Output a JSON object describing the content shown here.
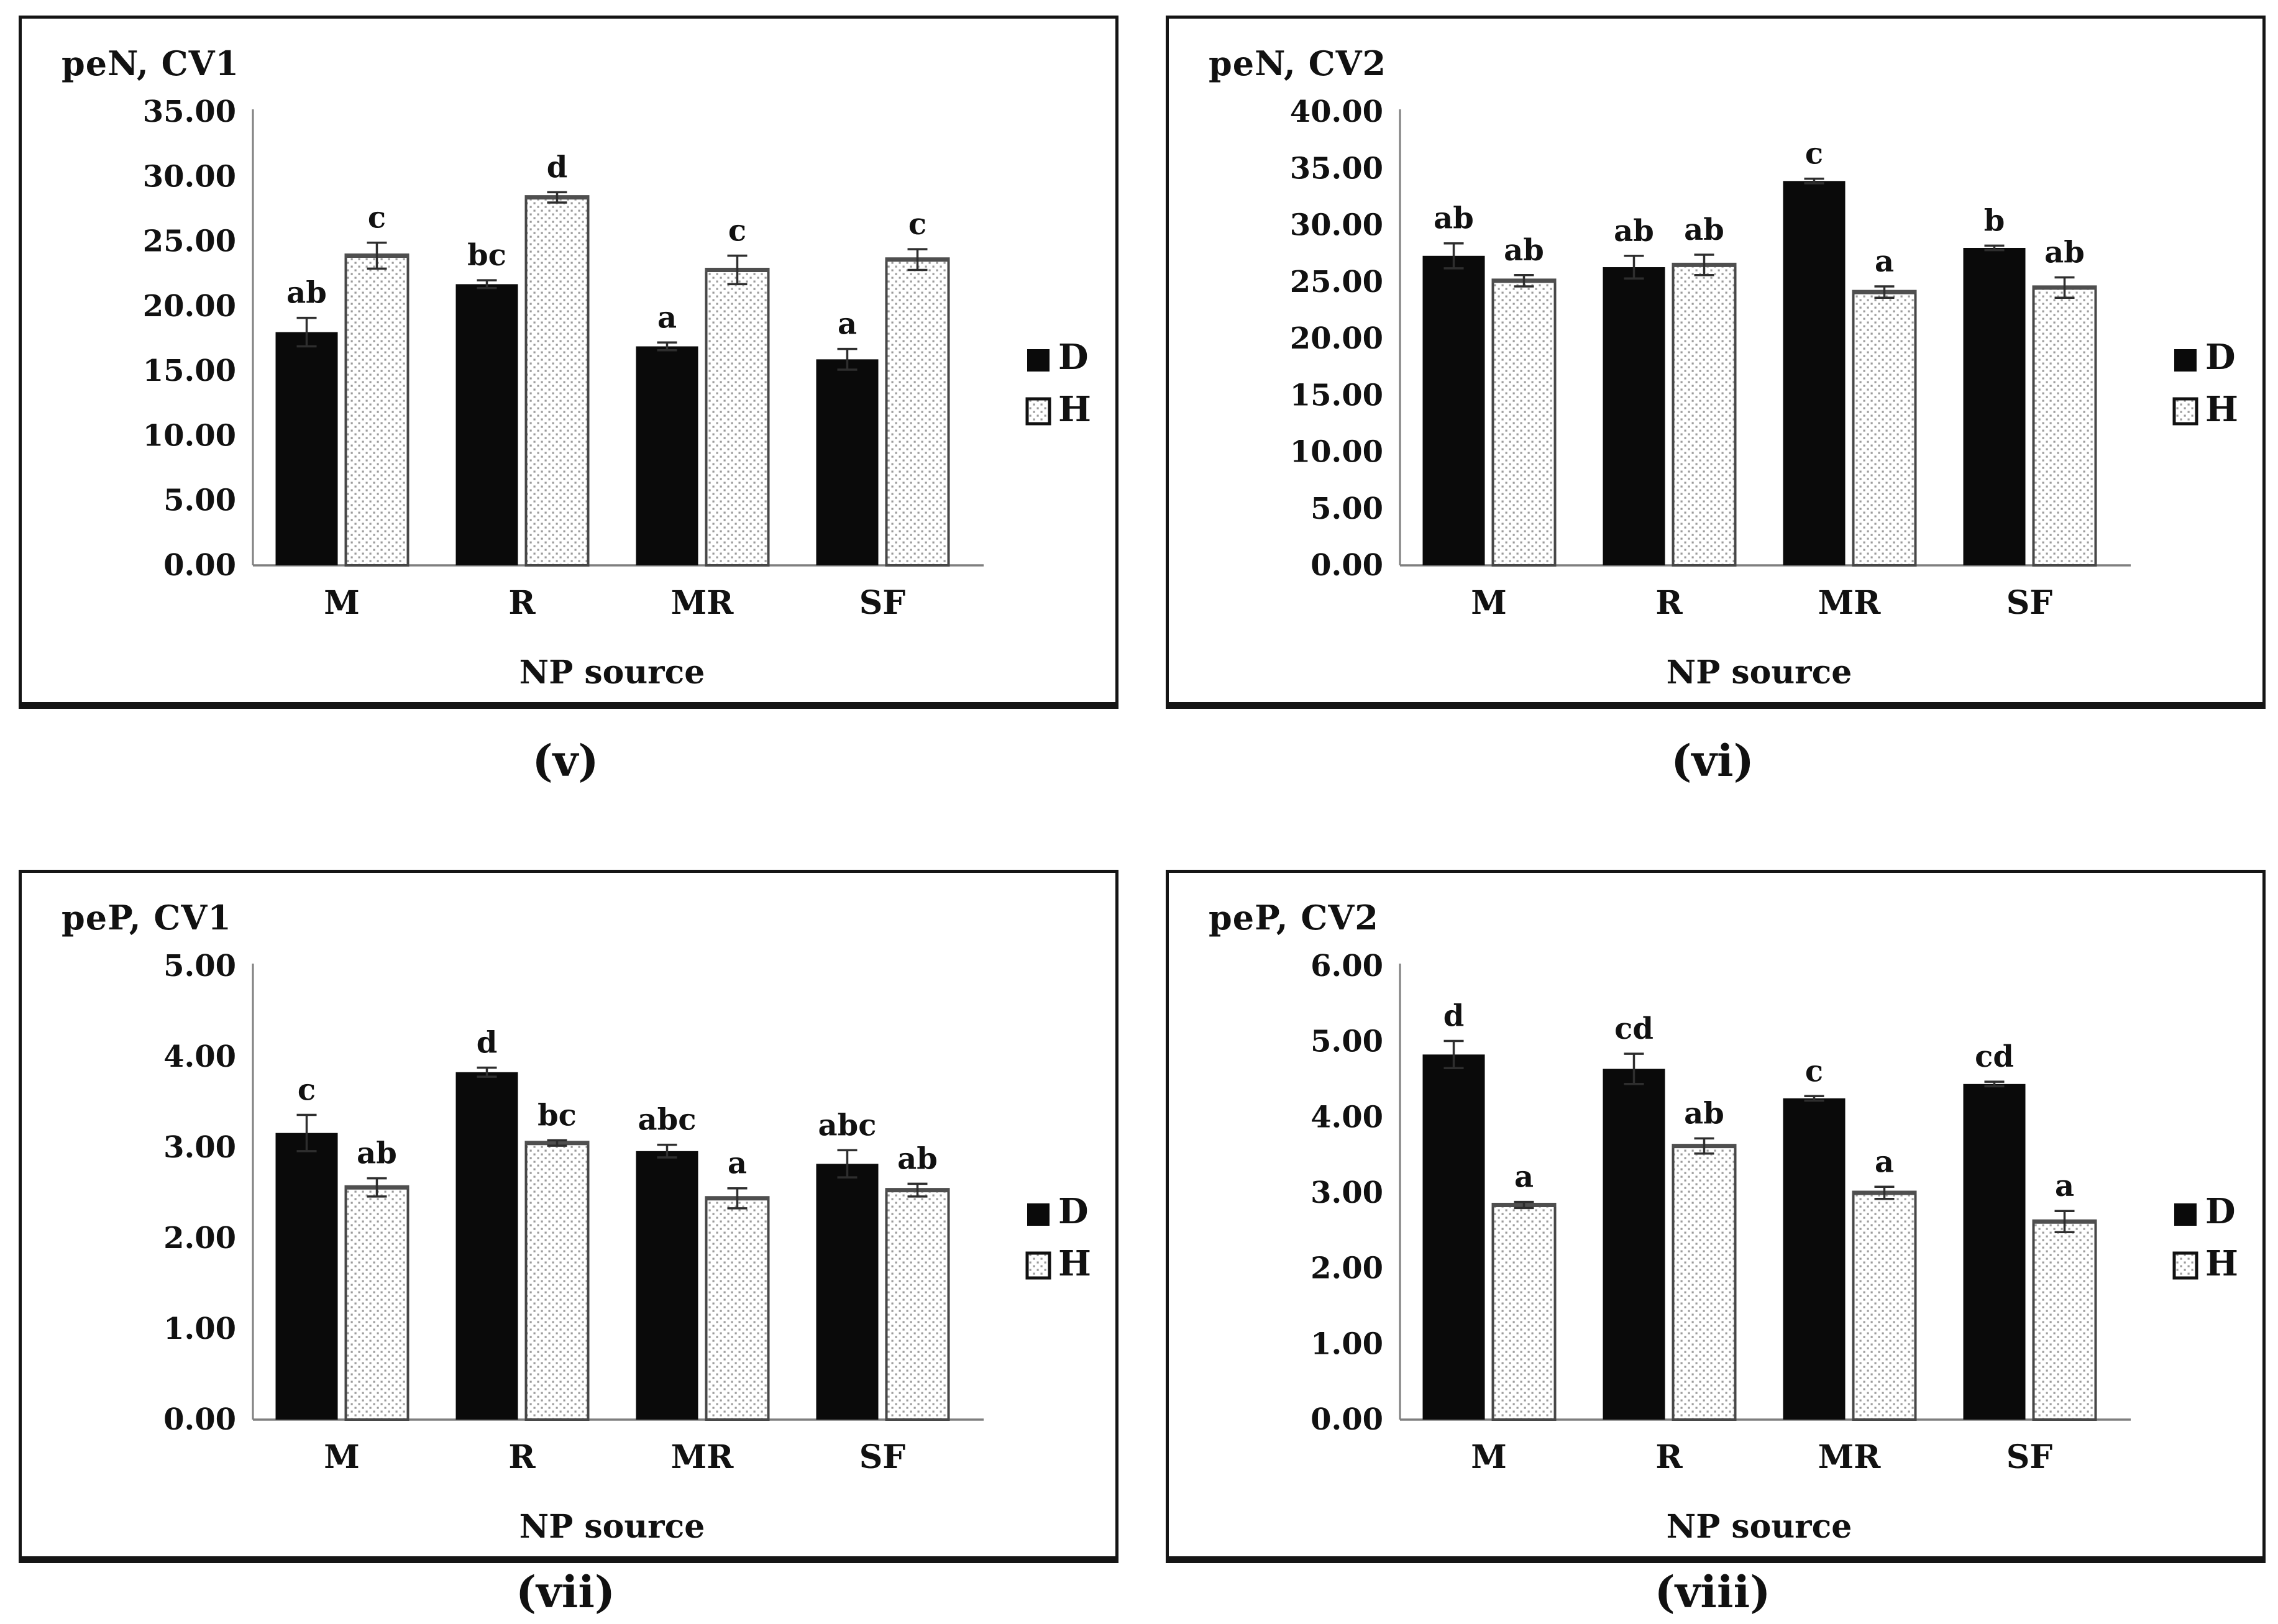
{
  "figure": {
    "background": "#ffffff",
    "panel_border_color": "#151515",
    "text_color": "#111111",
    "axis_color": "#7f7f7f",
    "error_bar_color": "#2e2e2e",
    "bar_d_fill": "#0a0a0a",
    "bar_h_dot_color": "#9b9b9b",
    "bar_h_stroke": "#474747"
  },
  "chart_data": [
    {
      "id": "v",
      "type": "bar",
      "title": "peN, CV1",
      "caption": "(v)",
      "xlabel": "NP source",
      "categories": [
        "M",
        "R",
        "MR",
        "SF"
      ],
      "ylim": [
        0,
        35
      ],
      "ytick_step": 5,
      "grid": false,
      "legend_position": "right",
      "series": [
        {
          "name": "D",
          "style": "solid-black",
          "values": [
            18.0,
            21.7,
            16.9,
            15.9
          ],
          "errors": [
            1.1,
            0.3,
            0.3,
            0.8
          ],
          "letters": [
            "ab",
            "bc",
            "a",
            "a"
          ]
        },
        {
          "name": "H",
          "style": "dotted-white",
          "values": [
            23.9,
            28.4,
            22.8,
            23.6
          ],
          "errors": [
            1.0,
            0.4,
            1.1,
            0.8
          ],
          "letters": [
            "c",
            "d",
            "c",
            "c"
          ]
        }
      ]
    },
    {
      "id": "vi",
      "type": "bar",
      "title": "peN, CV2",
      "caption": "(vi)",
      "xlabel": "NP source",
      "categories": [
        "M",
        "R",
        "MR",
        "SF"
      ],
      "ylim": [
        0,
        40
      ],
      "ytick_step": 5,
      "grid": false,
      "legend_position": "right",
      "series": [
        {
          "name": "D",
          "style": "solid-black",
          "values": [
            27.3,
            26.3,
            33.9,
            28.0
          ],
          "errors": [
            1.1,
            1.0,
            0.2,
            0.2
          ],
          "letters": [
            "ab",
            "ab",
            "c",
            "b"
          ]
        },
        {
          "name": "H",
          "style": "dotted-white",
          "values": [
            25.1,
            26.5,
            24.1,
            24.5
          ],
          "errors": [
            0.5,
            0.9,
            0.5,
            0.9
          ],
          "letters": [
            "ab",
            "ab",
            "a",
            "ab"
          ]
        }
      ]
    },
    {
      "id": "vii",
      "type": "bar",
      "title": "peP, CV1",
      "caption": "(vii)",
      "xlabel": "NP source",
      "categories": [
        "M",
        "R",
        "MR",
        "SF"
      ],
      "ylim": [
        0,
        5
      ],
      "ytick_step": 1,
      "grid": false,
      "legend_position": "right",
      "series": [
        {
          "name": "D",
          "style": "solid-black",
          "values": [
            3.16,
            3.83,
            2.96,
            2.82
          ],
          "errors": [
            0.2,
            0.05,
            0.07,
            0.15
          ],
          "letters": [
            "c",
            "d",
            "abc",
            "abc"
          ]
        },
        {
          "name": "H",
          "style": "dotted-white",
          "values": [
            2.56,
            3.05,
            2.44,
            2.53
          ],
          "errors": [
            0.1,
            0.03,
            0.11,
            0.07
          ],
          "letters": [
            "ab",
            "bc",
            "a",
            "ab"
          ]
        }
      ]
    },
    {
      "id": "viii",
      "type": "bar",
      "title": "peP, CV2",
      "caption": "(viii)",
      "xlabel": "NP source",
      "categories": [
        "M",
        "R",
        "MR",
        "SF"
      ],
      "ylim": [
        0,
        6
      ],
      "ytick_step": 1,
      "grid": false,
      "legend_position": "right",
      "series": [
        {
          "name": "D",
          "style": "solid-black",
          "values": [
            4.83,
            4.64,
            4.25,
            4.44
          ],
          "errors": [
            0.18,
            0.2,
            0.03,
            0.03
          ],
          "letters": [
            "d",
            "cd",
            "c",
            "cd"
          ]
        },
        {
          "name": "H",
          "style": "dotted-white",
          "values": [
            2.84,
            3.62,
            3.0,
            2.62
          ],
          "errors": [
            0.04,
            0.1,
            0.08,
            0.14
          ],
          "letters": [
            "a",
            "ab",
            "a",
            "a"
          ]
        }
      ]
    }
  ]
}
